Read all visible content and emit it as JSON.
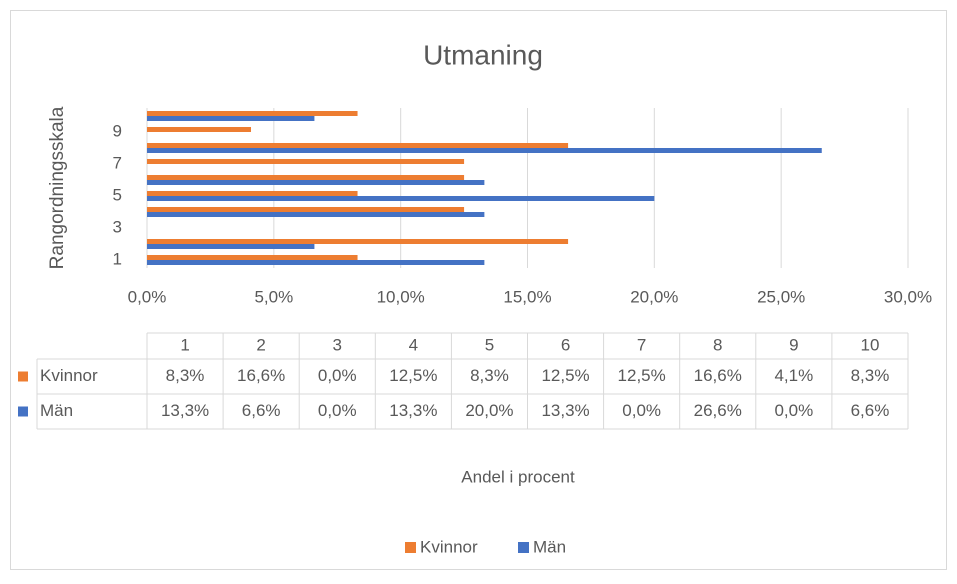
{
  "chart_data": {
    "type": "hbar",
    "title": "Utmaning",
    "x_label": "Andel i procent",
    "y_label": "Rangordningsskala",
    "categories": [
      "1",
      "2",
      "3",
      "4",
      "5",
      "6",
      "7",
      "8",
      "9",
      "10"
    ],
    "series": [
      {
        "name": "Kvinnor",
        "color": "#ed7d31",
        "values": [
          8.3,
          16.6,
          0.0,
          12.5,
          8.3,
          12.5,
          12.5,
          16.6,
          4.1,
          8.3
        ],
        "value_labels": [
          "8,3%",
          "16,6%",
          "0,0%",
          "12,5%",
          "8,3%",
          "12,5%",
          "12,5%",
          "16,6%",
          "4,1%",
          "8,3%"
        ]
      },
      {
        "name": "Män",
        "color": "#4472c4",
        "values": [
          13.3,
          6.6,
          0.0,
          13.3,
          20.0,
          13.3,
          0.0,
          26.6,
          0.0,
          6.6
        ],
        "value_labels": [
          "13,3%",
          "6,6%",
          "0,0%",
          "13,3%",
          "20,0%",
          "13,3%",
          "0,0%",
          "26,6%",
          "0,0%",
          "6,6%"
        ]
      }
    ],
    "xlim": [
      0,
      30
    ],
    "xticks": [
      {
        "value": 0,
        "label": "0,0%"
      },
      {
        "value": 5,
        "label": "5,0%"
      },
      {
        "value": 10,
        "label": "10,0%"
      },
      {
        "value": 15,
        "label": "15,0%"
      },
      {
        "value": 20,
        "label": "20,0%"
      },
      {
        "value": 25,
        "label": "25,0%"
      },
      {
        "value": 30,
        "label": "30,0%"
      }
    ],
    "grid": true,
    "legend": "bottom"
  }
}
